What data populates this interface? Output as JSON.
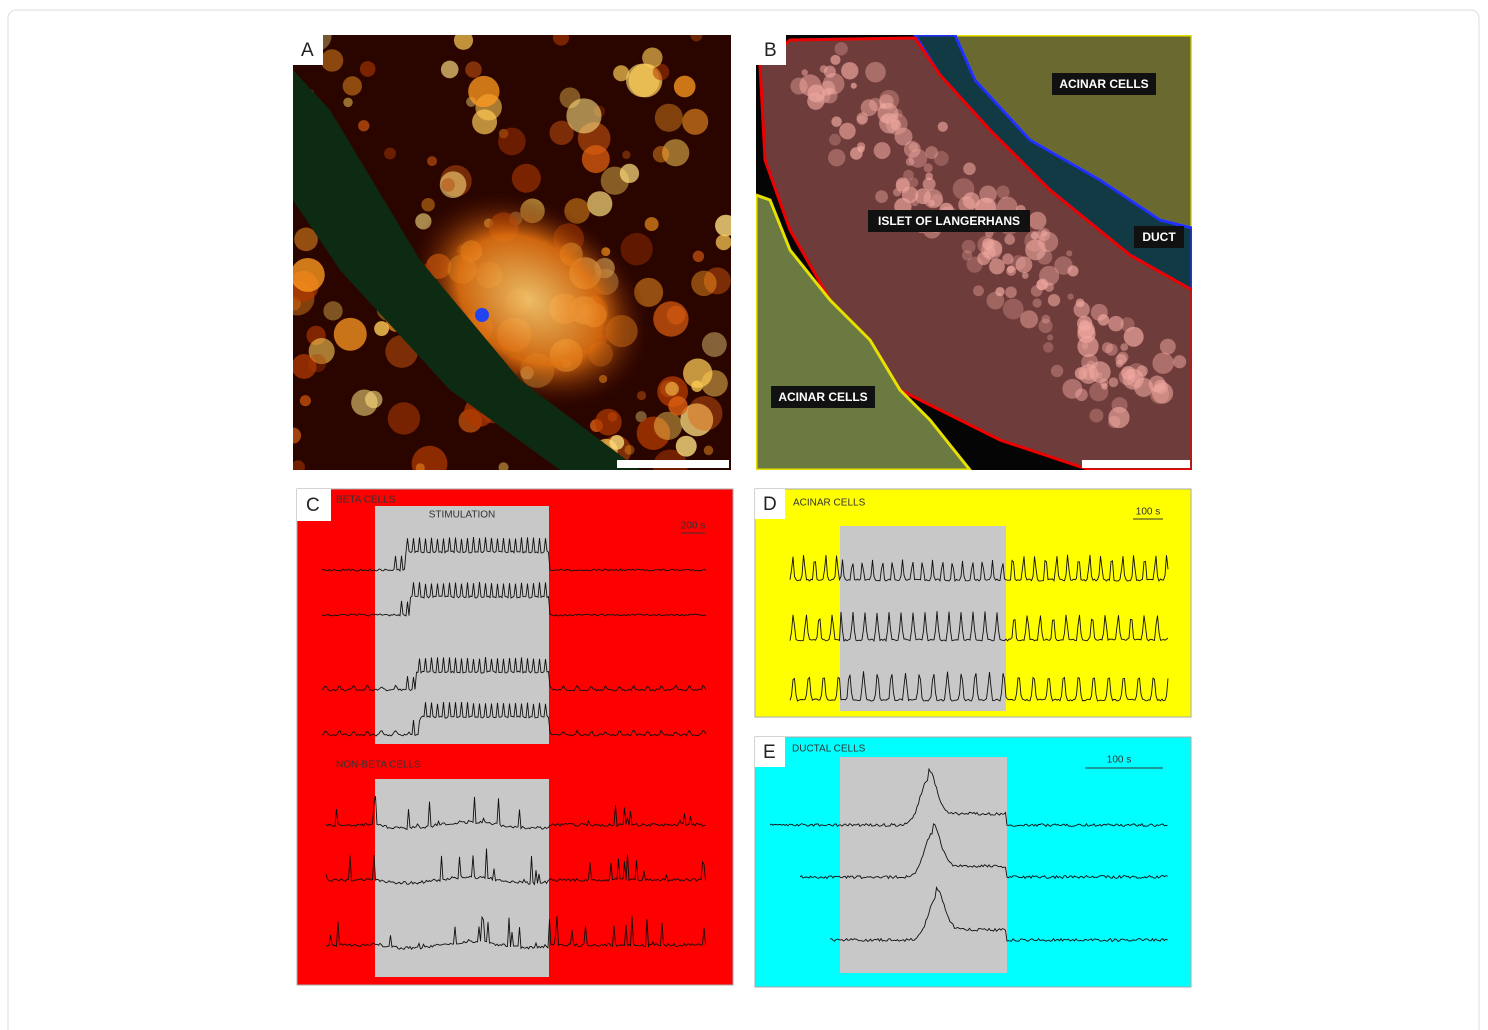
{
  "panels": {
    "a": {
      "label": "A"
    },
    "b": {
      "label": "B",
      "acinar_top": "ACINAR CELLS",
      "islet": "ISLET OF LANGERHANS",
      "duct": "DUCT",
      "acinar_bottom": "ACINAR CELLS"
    },
    "c": {
      "label": "C",
      "beta_title": "BETA CELLS",
      "stimulation": "STIMULATION",
      "scale": "200 s",
      "non_beta_title": "NON-BETA CELLS"
    },
    "d": {
      "label": "D",
      "title": "ACINAR CELLS",
      "scale": "100 s"
    },
    "e": {
      "label": "E",
      "title": "DUCTAL CELLS",
      "scale": "100 s"
    }
  }
}
